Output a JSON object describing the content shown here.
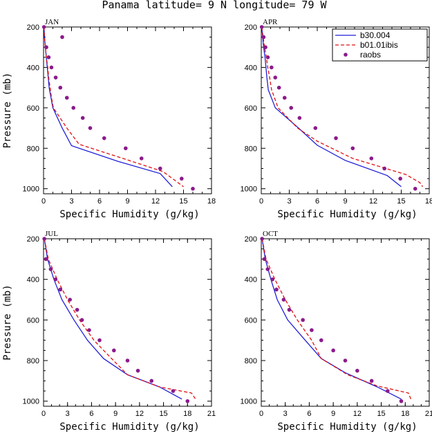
{
  "title": "Panama  latitude= 9 N longitude= 79 W",
  "colors": {
    "b30": "#1f1fd6",
    "b01": "#e01010",
    "raobs": "#8b1a8b"
  },
  "chart_data": [
    {
      "type": "line",
      "panel": "JAN",
      "xlabel": "Specific Humidity (g/kg)",
      "ylabel": "Pressure (mb)",
      "xlim": [
        0,
        18
      ],
      "ylim": [
        200,
        1025
      ],
      "xticks": [
        0,
        3,
        6,
        9,
        12,
        15,
        18
      ],
      "yticks": [
        200,
        400,
        600,
        800,
        1000
      ],
      "series": [
        {
          "name": "b30.004",
          "style": "solid",
          "points": [
            [
              0.05,
              200
            ],
            [
              0.1,
              250
            ],
            [
              0.2,
              300
            ],
            [
              0.3,
              350
            ],
            [
              0.4,
              400
            ],
            [
              0.5,
              450
            ],
            [
              0.6,
              500
            ],
            [
              0.8,
              550
            ],
            [
              1.0,
              600
            ],
            [
              2.0,
              700
            ],
            [
              3.0,
              787
            ],
            [
              8.0,
              865
            ],
            [
              12.5,
              925
            ],
            [
              13.8,
              990
            ]
          ]
        },
        {
          "name": "b01.01ibis",
          "style": "dashed",
          "points": [
            [
              0.05,
              200
            ],
            [
              0.1,
              250
            ],
            [
              0.2,
              300
            ],
            [
              0.3,
              350
            ],
            [
              0.45,
              400
            ],
            [
              0.55,
              450
            ],
            [
              0.7,
              500
            ],
            [
              0.85,
              550
            ],
            [
              1.05,
              600
            ],
            [
              2.5,
              700
            ],
            [
              3.8,
              780
            ],
            [
              8.5,
              850
            ],
            [
              12.8,
              915
            ],
            [
              15.0,
              990
            ]
          ]
        },
        {
          "name": "raobs",
          "style": "dot",
          "points": [
            [
              0.05,
              200
            ],
            [
              2.0,
              250
            ],
            [
              0.3,
              300
            ],
            [
              0.55,
              350
            ],
            [
              0.85,
              400
            ],
            [
              1.3,
              450
            ],
            [
              1.8,
              500
            ],
            [
              2.5,
              550
            ],
            [
              3.2,
              600
            ],
            [
              4.2,
              650
            ],
            [
              5.0,
              700
            ],
            [
              6.5,
              750
            ],
            [
              8.8,
              800
            ],
            [
              10.5,
              850
            ],
            [
              12.5,
              900
            ],
            [
              14.8,
              950
            ],
            [
              16.0,
              1000
            ]
          ]
        }
      ]
    },
    {
      "type": "line",
      "panel": "APR",
      "xlabel": "Specific Humidity (g/kg)",
      "ylabel": "",
      "xlim": [
        0,
        18
      ],
      "ylim": [
        200,
        1025
      ],
      "xticks": [
        0,
        3,
        6,
        9,
        12,
        15,
        18
      ],
      "yticks": [
        200,
        400,
        600,
        800,
        1000
      ],
      "series": [
        {
          "name": "b30.004",
          "style": "solid",
          "points": [
            [
              0.05,
              200
            ],
            [
              0.15,
              250
            ],
            [
              0.25,
              300
            ],
            [
              0.4,
              350
            ],
            [
              0.5,
              400
            ],
            [
              0.6,
              450
            ],
            [
              0.75,
              510
            ],
            [
              1.5,
              600
            ],
            [
              4.0,
              700
            ],
            [
              6.0,
              785
            ],
            [
              9.0,
              860
            ],
            [
              13.5,
              935
            ],
            [
              15.0,
              990
            ]
          ]
        },
        {
          "name": "b01.01ibis",
          "style": "dashed",
          "points": [
            [
              0.05,
              200
            ],
            [
              0.2,
              250
            ],
            [
              0.35,
              300
            ],
            [
              0.55,
              350
            ],
            [
              0.7,
              400
            ],
            [
              0.9,
              450
            ],
            [
              1.1,
              510
            ],
            [
              1.8,
              600
            ],
            [
              3.9,
              700
            ],
            [
              6.0,
              765
            ],
            [
              9.8,
              850
            ],
            [
              15.5,
              930
            ],
            [
              17.0,
              970
            ],
            [
              17.3,
              990
            ]
          ]
        },
        {
          "name": "raobs",
          "style": "dot",
          "points": [
            [
              0.05,
              200
            ],
            [
              0.25,
              250
            ],
            [
              0.45,
              300
            ],
            [
              0.7,
              350
            ],
            [
              1.1,
              400
            ],
            [
              1.5,
              450
            ],
            [
              1.9,
              500
            ],
            [
              2.5,
              550
            ],
            [
              3.2,
              600
            ],
            [
              4.1,
              650
            ],
            [
              5.8,
              700
            ],
            [
              8.0,
              750
            ],
            [
              9.8,
              800
            ],
            [
              11.8,
              850
            ],
            [
              13.2,
              900
            ],
            [
              14.9,
              950
            ],
            [
              16.5,
              1000
            ]
          ]
        }
      ]
    },
    {
      "type": "line",
      "panel": "JUL",
      "xlabel": "Specific Humidity (g/kg)",
      "ylabel": "Pressure (mb)",
      "xlim": [
        0,
        21
      ],
      "ylim": [
        200,
        1025
      ],
      "xticks": [
        0,
        3,
        6,
        9,
        12,
        15,
        18,
        21
      ],
      "yticks": [
        200,
        400,
        600,
        800,
        1000
      ],
      "series": [
        {
          "name": "b30.004",
          "style": "solid",
          "points": [
            [
              0.1,
              200
            ],
            [
              0.5,
              300
            ],
            [
              1.3,
              400
            ],
            [
              2.3,
              500
            ],
            [
              3.8,
              600
            ],
            [
              5.5,
              700
            ],
            [
              7.5,
              790
            ],
            [
              10.5,
              870
            ],
            [
              14.5,
              930
            ],
            [
              17.3,
              990
            ]
          ]
        },
        {
          "name": "b01.01ibis",
          "style": "dashed",
          "points": [
            [
              0.1,
              200
            ],
            [
              0.6,
              300
            ],
            [
              1.7,
              400
            ],
            [
              3.0,
              500
            ],
            [
              4.5,
              600
            ],
            [
              6.3,
              700
            ],
            [
              8.5,
              790
            ],
            [
              10.5,
              870
            ],
            [
              14.5,
              930
            ],
            [
              18.5,
              960
            ],
            [
              19.0,
              990
            ]
          ]
        },
        {
          "name": "raobs",
          "style": "dot",
          "points": [
            [
              0.1,
              200
            ],
            [
              0.3,
              300
            ],
            [
              0.9,
              350
            ],
            [
              1.5,
              400
            ],
            [
              2.1,
              450
            ],
            [
              3.3,
              500
            ],
            [
              4.2,
              550
            ],
            [
              4.8,
              600
            ],
            [
              5.7,
              650
            ],
            [
              7.0,
              700
            ],
            [
              8.8,
              750
            ],
            [
              10.5,
              800
            ],
            [
              11.8,
              850
            ],
            [
              13.5,
              900
            ],
            [
              16.2,
              950
            ],
            [
              18.0,
              1000
            ]
          ]
        }
      ]
    },
    {
      "type": "line",
      "panel": "OCT",
      "xlabel": "Specific Humidity (g/kg)",
      "ylabel": "",
      "xlim": [
        0,
        21
      ],
      "ylim": [
        200,
        1025
      ],
      "xticks": [
        0,
        3,
        6,
        9,
        12,
        15,
        18,
        21
      ],
      "yticks": [
        200,
        400,
        600,
        800,
        1000
      ],
      "series": [
        {
          "name": "b30.004",
          "style": "solid",
          "points": [
            [
              0.1,
              200
            ],
            [
              0.5,
              300
            ],
            [
              1.2,
              400
            ],
            [
              2.0,
              500
            ],
            [
              3.3,
              600
            ],
            [
              5.5,
              700
            ],
            [
              7.5,
              790
            ],
            [
              10.5,
              860
            ],
            [
              14.5,
              930
            ],
            [
              17.5,
              990
            ]
          ]
        },
        {
          "name": "b01.01ibis",
          "style": "dashed",
          "points": [
            [
              0.1,
              200
            ],
            [
              0.6,
              300
            ],
            [
              1.7,
              400
            ],
            [
              3.0,
              500
            ],
            [
              4.5,
              600
            ],
            [
              6.3,
              700
            ],
            [
              7.5,
              790
            ],
            [
              10.8,
              870
            ],
            [
              14.5,
              925
            ],
            [
              18.4,
              960
            ],
            [
              18.7,
              990
            ]
          ]
        },
        {
          "name": "raobs",
          "style": "dot",
          "points": [
            [
              0.1,
              200
            ],
            [
              0.4,
              300
            ],
            [
              0.8,
              350
            ],
            [
              1.4,
              400
            ],
            [
              1.9,
              450
            ],
            [
              2.8,
              500
            ],
            [
              3.5,
              550
            ],
            [
              5.2,
              600
            ],
            [
              6.3,
              650
            ],
            [
              7.5,
              700
            ],
            [
              9.0,
              750
            ],
            [
              10.5,
              800
            ],
            [
              12.0,
              850
            ],
            [
              13.8,
              900
            ],
            [
              15.8,
              950
            ],
            [
              17.5,
              1000
            ]
          ]
        }
      ]
    }
  ]
}
